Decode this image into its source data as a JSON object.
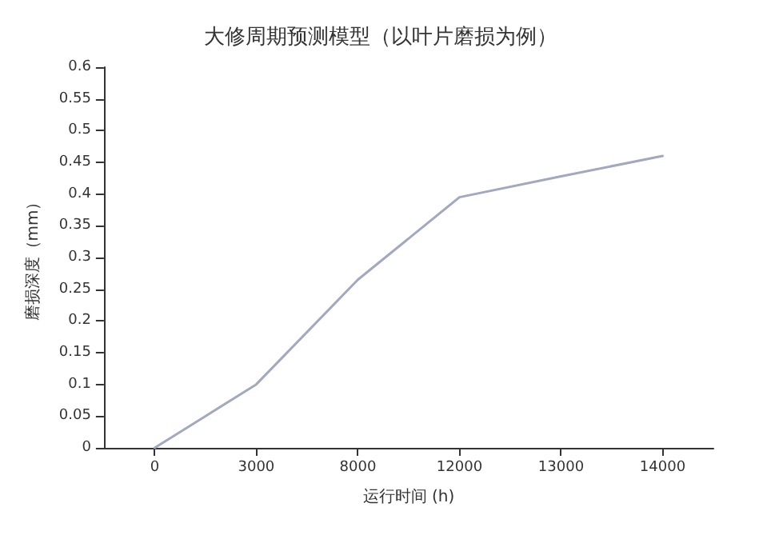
{
  "chart_data": {
    "type": "line",
    "title": "大修周期预测模型（以叶片磨损为例）",
    "xlabel": "运行时间 (h)",
    "ylabel": "磨损深度（mm）",
    "categories": [
      "0",
      "3000",
      "8000",
      "12000",
      "13000",
      "14000"
    ],
    "series": [
      {
        "color": "#a2a9bf",
        "values": [
          0,
          0.1,
          0.265,
          0.395,
          0.428,
          0.46
        ]
      }
    ],
    "ylim": [
      0,
      0.6
    ],
    "yticks": [
      0,
      0.05,
      0.1,
      0.15,
      0.2,
      0.25,
      0.3,
      0.35,
      0.4,
      0.45,
      0.5,
      0.55,
      0.6
    ],
    "grid": false,
    "marker": "none",
    "line_style": "solid"
  }
}
